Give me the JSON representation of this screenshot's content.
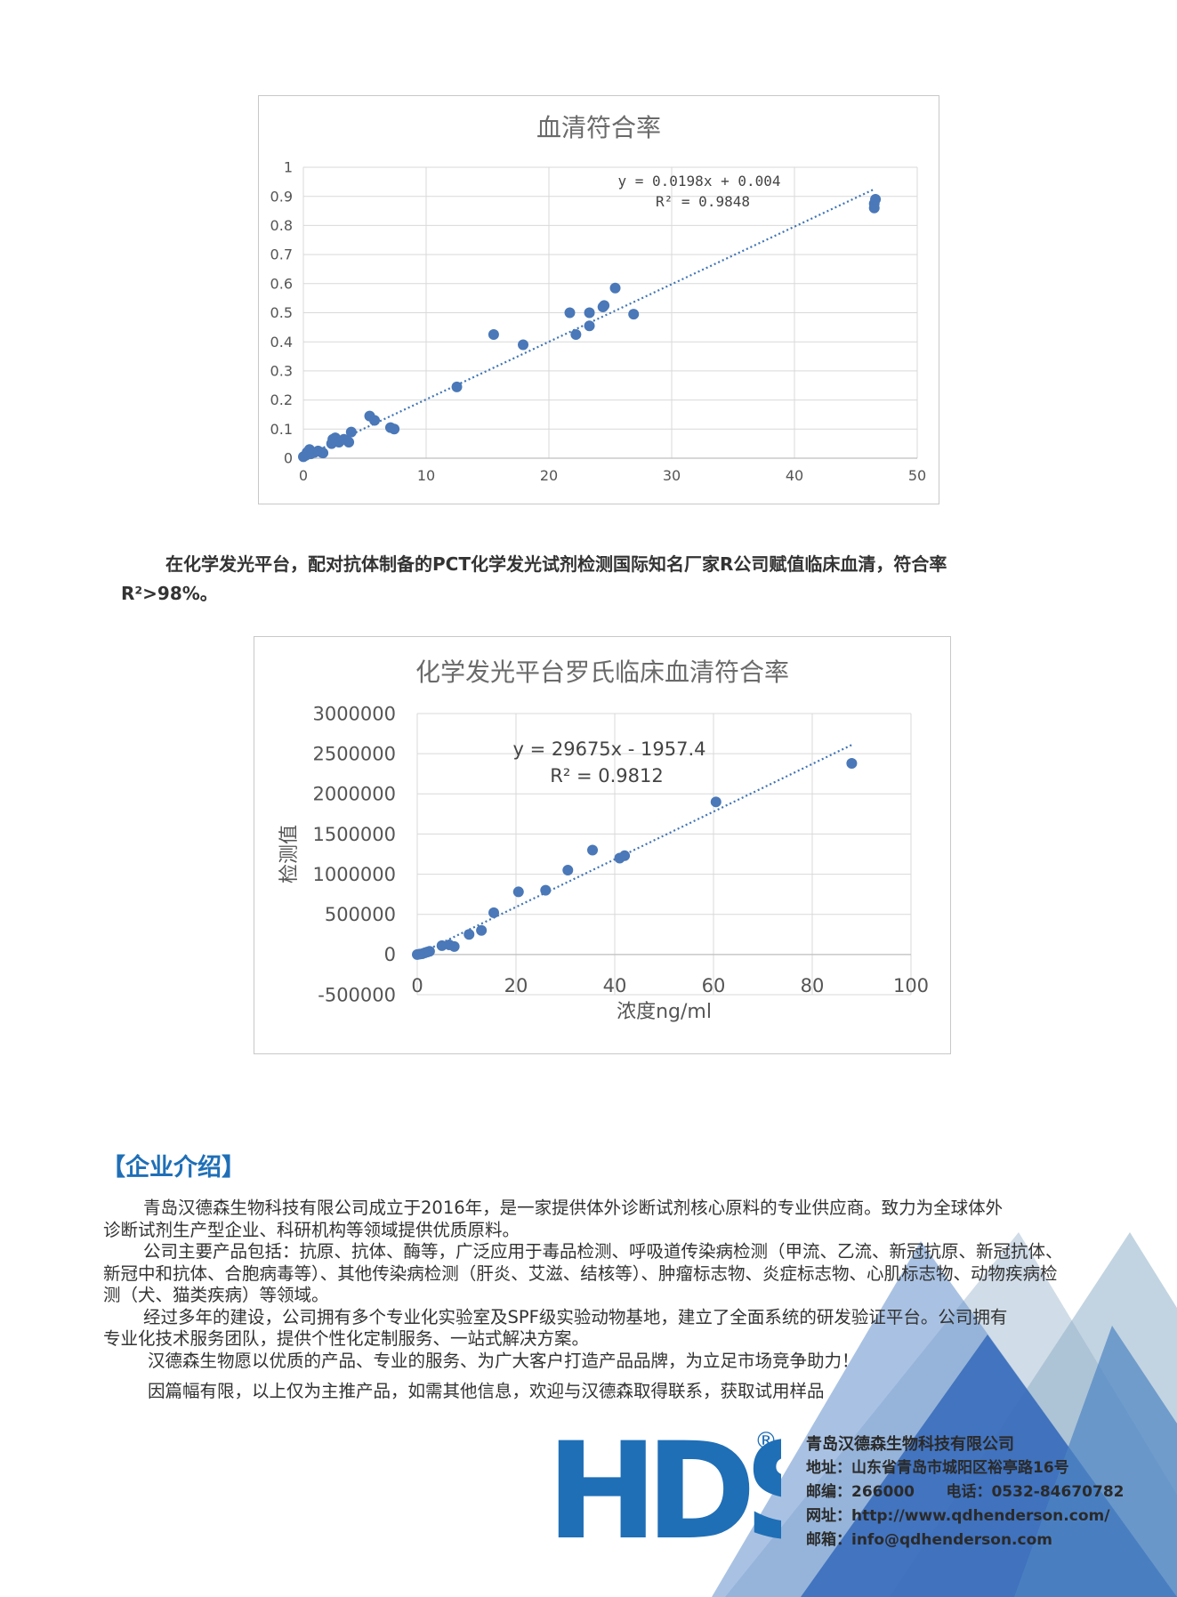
{
  "chart_data": [
    {
      "type": "scatter",
      "title": "血清符合率",
      "xlabel": "",
      "ylabel": "",
      "xlim": [
        0,
        50
      ],
      "ylim": [
        0,
        1
      ],
      "x_ticks": [
        "0",
        "10",
        "20",
        "30",
        "40",
        "50"
      ],
      "y_ticks": [
        "0",
        "0.1",
        "0.2",
        "0.3",
        "0.4",
        "0.5",
        "0.6",
        "0.7",
        "0.8",
        "0.9",
        "1"
      ],
      "grid": true,
      "trendline": {
        "slope": 0.0198,
        "intercept": 0.004,
        "x_range": [
          0,
          46.5
        ]
      },
      "equation": "y = 0.0198x + 0.004",
      "r2": "R² = 0.9848",
      "points": [
        [
          0.0,
          0.005
        ],
        [
          0.2,
          0.01
        ],
        [
          0.3,
          0.02
        ],
        [
          0.5,
          0.03
        ],
        [
          0.6,
          0.015
        ],
        [
          0.9,
          0.02
        ],
        [
          1.2,
          0.025
        ],
        [
          1.5,
          0.02
        ],
        [
          1.6,
          0.018
        ],
        [
          2.3,
          0.05
        ],
        [
          2.4,
          0.065
        ],
        [
          2.6,
          0.07
        ],
        [
          2.9,
          0.055
        ],
        [
          3.3,
          0.065
        ],
        [
          3.7,
          0.055
        ],
        [
          3.9,
          0.09
        ],
        [
          5.4,
          0.145
        ],
        [
          5.8,
          0.13
        ],
        [
          7.1,
          0.105
        ],
        [
          7.4,
          0.1
        ],
        [
          12.5,
          0.245
        ],
        [
          15.5,
          0.425
        ],
        [
          17.9,
          0.39
        ],
        [
          21.7,
          0.5
        ],
        [
          22.2,
          0.425
        ],
        [
          23.3,
          0.5
        ],
        [
          23.3,
          0.455
        ],
        [
          24.4,
          0.52
        ],
        [
          24.5,
          0.525
        ],
        [
          25.4,
          0.585
        ],
        [
          26.9,
          0.495
        ],
        [
          46.5,
          0.86
        ],
        [
          46.5,
          0.875
        ],
        [
          46.6,
          0.89
        ]
      ]
    },
    {
      "type": "scatter",
      "title": "化学发光平台罗氏临床血清符合率",
      "xlabel": "浓度ng/ml",
      "ylabel": "检测值",
      "xlim": [
        0,
        100
      ],
      "ylim": [
        -500000,
        3000000
      ],
      "x_ticks": [
        "0",
        "20",
        "40",
        "60",
        "80",
        "100"
      ],
      "y_ticks": [
        "-500000",
        "0",
        "500000",
        "1000000",
        "1500000",
        "2000000",
        "2500000",
        "3000000"
      ],
      "grid": true,
      "trendline": {
        "slope": 29675,
        "intercept": -1957.4,
        "x_range": [
          0,
          88
        ]
      },
      "equation": "y = 29675x - 1957.4",
      "r2": "R² = 0.9812",
      "points": [
        [
          0,
          0
        ],
        [
          0.5,
          5000
        ],
        [
          1,
          10000
        ],
        [
          1.5,
          20000
        ],
        [
          2,
          30000
        ],
        [
          2.5,
          40000
        ],
        [
          5,
          110000
        ],
        [
          6.5,
          120000
        ],
        [
          7.5,
          100000
        ],
        [
          10.5,
          250000
        ],
        [
          13,
          300000
        ],
        [
          15.5,
          520000
        ],
        [
          20.5,
          780000
        ],
        [
          26,
          800000
        ],
        [
          30.5,
          1050000
        ],
        [
          35.5,
          1300000
        ],
        [
          41,
          1200000
        ],
        [
          42,
          1230000
        ],
        [
          60.5,
          1900000
        ],
        [
          88,
          2380000
        ]
      ]
    }
  ],
  "caption": {
    "line1": "在化学发光平台，配对抗体制备的PCT化学发光试剂检测国际知名厂家R公司赋值临床血清，符合率",
    "line2": "R²>98%。"
  },
  "section_heading": "【企业介绍】",
  "intro": [
    "青岛汉德森生物科技有限公司成立于2016年，是一家提供体外诊断试剂核心原料的专业供应商。致力为全球体外",
    "诊断试剂生产型企业、科研机构等领域提供优质原料。",
    "公司主要产品包括：抗原、抗体、酶等，广泛应用于毒品检测、呼吸道传染病检测（甲流、乙流、新冠抗原、新冠抗体、",
    "新冠中和抗体、合胞病毒等）、其他传染病检测（肝炎、艾滋、结核等）、肿瘤标志物、炎症标志物、心肌标志物、动物疾病检",
    "测（犬、猫类疾病）等领域。",
    "经过多年的建设，公司拥有多个专业化实验室及SPF级实验动物基地，建立了全面系统的研发验证平台。公司拥有",
    "专业化技术服务团队，提供个性化定制服务、一站式解决方案。",
    "汉德森生物愿以优质的产品、专业的服务、为广大客户打造产品品牌，为立足市场竞争助力！",
    "因篇幅有限，以上仅为主推产品，如需其他信息，欢迎与汉德森取得联系，获取试用样品"
  ],
  "logo": {
    "text": "HDS",
    "registered": "®",
    "color": "#1f6fb7"
  },
  "contact": {
    "company": "青岛汉德森生物科技有限公司",
    "address": "地址：山东省青岛市城阳区裕亭路16号",
    "postcode_phone": "邮编：266000      电话：0532-84670782",
    "website": "网址：http://www.qdhenderson.com/",
    "email": "邮箱：info@qdhenderson.com"
  },
  "colors": {
    "marker": "#4a78b8",
    "trend": "#3f74b5",
    "accent": "#1f6fb7",
    "grid": "#d9d9d9"
  }
}
